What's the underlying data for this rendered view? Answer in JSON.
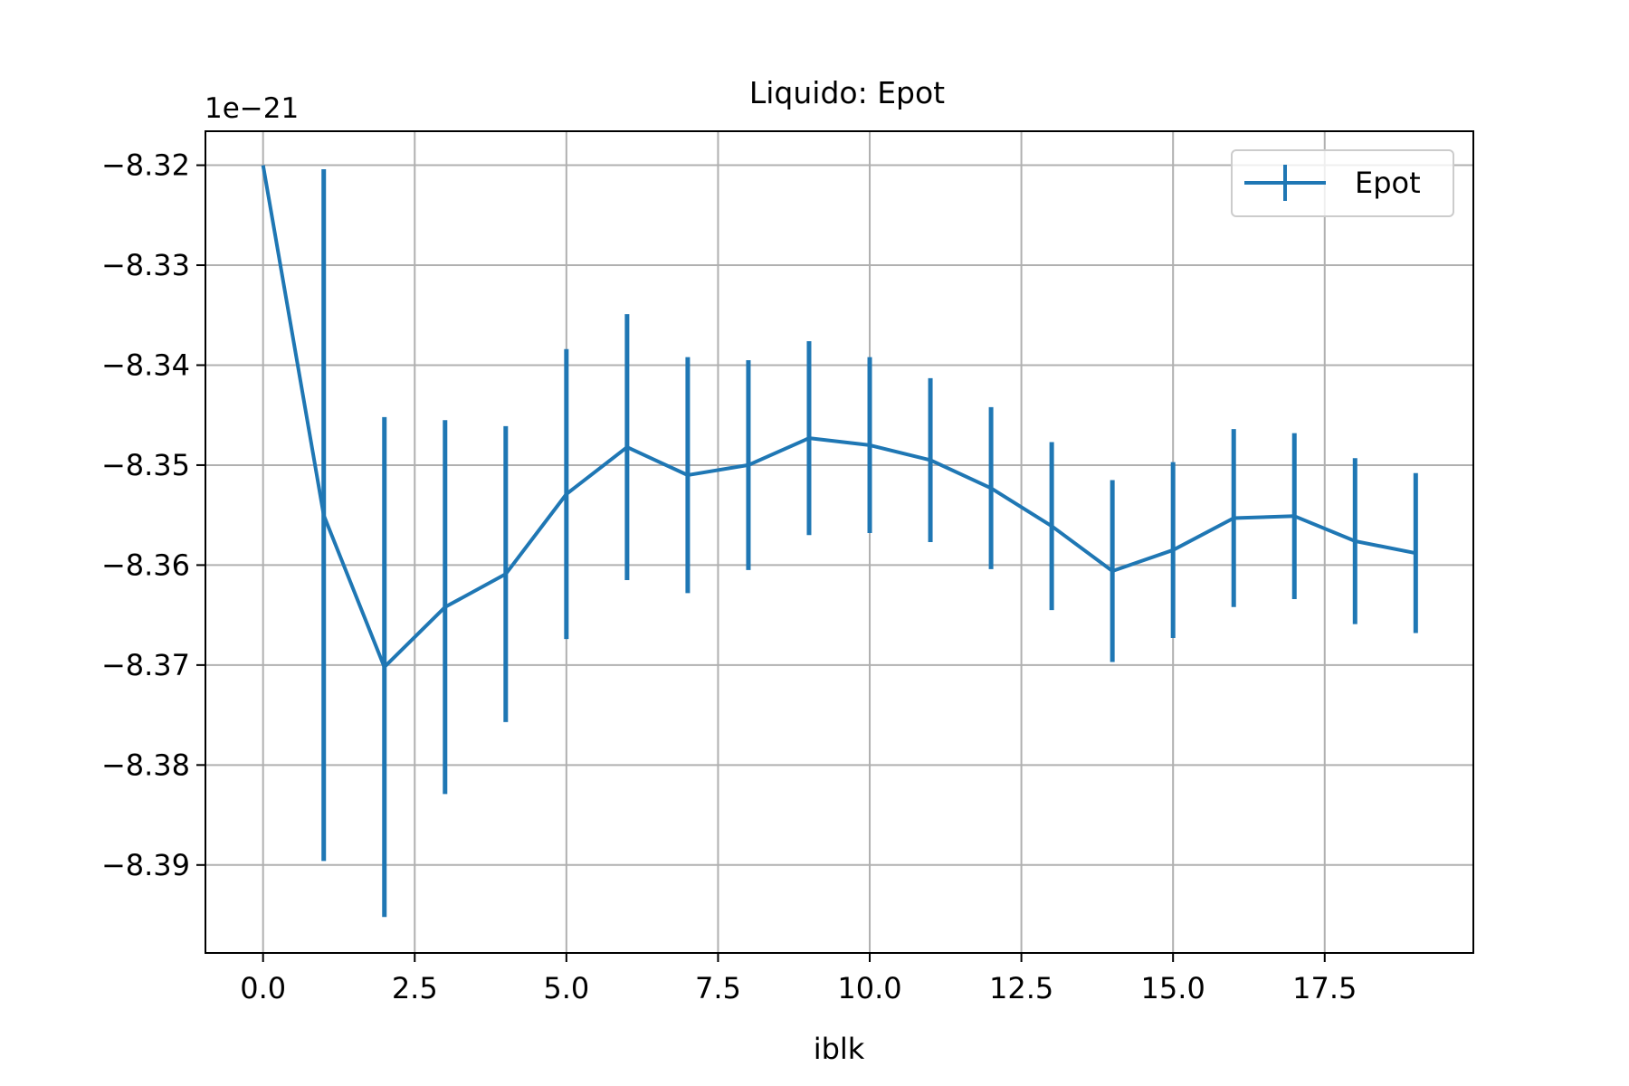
{
  "chart_data": {
    "type": "line",
    "title": "Liquido: Epot",
    "xlabel": "iblk",
    "ylabel": "",
    "y_offset_label": "1e−21",
    "xlim": [
      -0.95,
      19.95
    ],
    "ylim": [
      -8.3988,
      -8.3166
    ],
    "x_ticks": [
      0.0,
      2.5,
      5.0,
      7.5,
      10.0,
      12.5,
      15.0,
      17.5
    ],
    "x_tick_labels": [
      "0.0",
      "2.5",
      "5.0",
      "7.5",
      "10.0",
      "12.5",
      "15.0",
      "17.5"
    ],
    "y_ticks": [
      -8.32,
      -8.33,
      -8.34,
      -8.35,
      -8.36,
      -8.37,
      -8.38,
      -8.39
    ],
    "y_tick_labels": [
      "−8.32",
      "−8.33",
      "−8.34",
      "−8.35",
      "−8.36",
      "−8.37",
      "−8.38",
      "−8.39"
    ],
    "grid": true,
    "legend_position": "top-right",
    "series": [
      {
        "name": "Epot",
        "color": "#1f77b4",
        "x": [
          0,
          1,
          2,
          3,
          4,
          5,
          6,
          7,
          8,
          9,
          10,
          11,
          12,
          13,
          14,
          15,
          16,
          17,
          18,
          19
        ],
        "y": [
          -8.32,
          -8.355,
          -8.3702,
          -8.3642,
          -8.3609,
          -8.3529,
          -8.3482,
          -8.351,
          -8.35,
          -8.3473,
          -8.348,
          -8.3495,
          -8.3523,
          -8.3561,
          -8.3606,
          -8.3585,
          -8.3553,
          -8.3551,
          -8.3576,
          -8.3588
        ],
        "yerr": [
          0.0,
          0.0346,
          0.025,
          0.0187,
          0.0148,
          0.0145,
          0.0133,
          0.0118,
          0.0105,
          0.0097,
          0.0088,
          0.0082,
          0.0081,
          0.0084,
          0.0091,
          0.0088,
          0.0089,
          0.0083,
          0.0083,
          0.008
        ]
      }
    ]
  }
}
